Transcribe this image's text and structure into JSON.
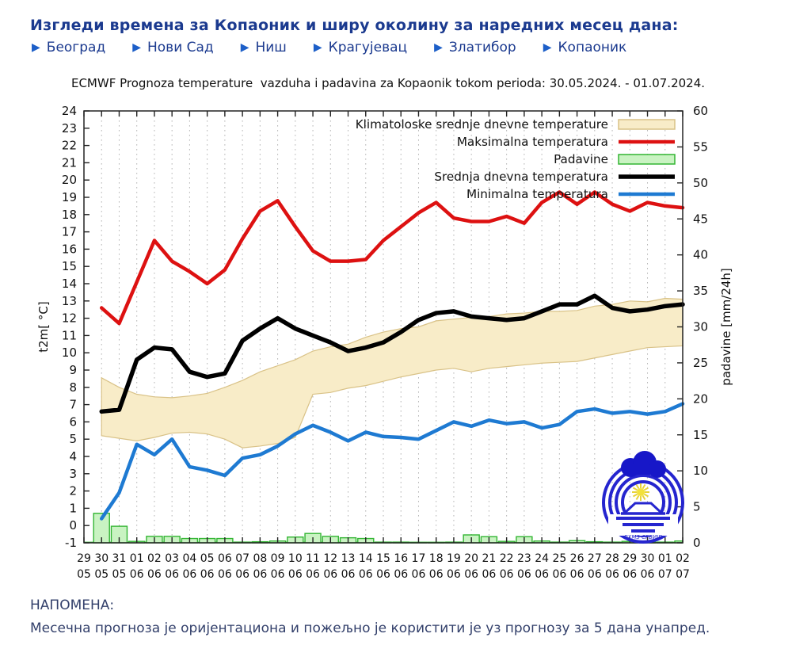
{
  "page": {
    "title": "Изгледи времена за Копаоник и ширу околину за наредних месец дана:",
    "note_heading": "НАПОМЕНА:",
    "note_text": "Месечна прогноза је оријентациона и пожељно је користити је уз прогнозу за 5 дана унапред."
  },
  "nav": {
    "arrow_icon": "▶",
    "links": [
      "Београд",
      "Нови Сад",
      "Ниш",
      "Крагујевац",
      "Златибор",
      "Копаоник"
    ]
  },
  "chart": {
    "title": "ECMWF Prognoza temperature  vazduha i padavina za Kopaonik tokom perioda: 30.05.2024. - 01.07.2024."
  },
  "colors": {
    "heading": "#1b3a8f",
    "arrow": "#1d5fc8",
    "note": "#33406b",
    "max_temp": "#dd1111",
    "mean_temp": "#000000",
    "min_temp": "#1e7ad2",
    "precip_fill": "#c9f3c2",
    "precip_border": "#33b533",
    "band_fill": "#f8ecc8",
    "band_border": "#d9c287",
    "grid": "#b5b5b5",
    "logo_blue": "#2525cf",
    "logo_sun": "#f2e13c"
  },
  "chart_data": {
    "type": "line",
    "title": "ECMWF Prognoza temperature  vazduha i padavina za Kopaonik tokom perioda: 30.05.2024. - 01.07.2024.",
    "ylabel_left": "t2m[ °C]",
    "ylabel_right": "padavine [mm/24h]",
    "ylim_left": [
      -1,
      24
    ],
    "ytick_step_left": 1,
    "ylim_right": [
      0,
      60
    ],
    "ytick_step_right": 5,
    "grid": "vertical-dotted",
    "legend_position": "top-right-inside",
    "logo_text": "РХМЗ СРБИЈЕ",
    "x_dates": [
      [
        "29",
        "05"
      ],
      [
        "30",
        "05"
      ],
      [
        "31",
        "05"
      ],
      [
        "01",
        "06"
      ],
      [
        "02",
        "06"
      ],
      [
        "03",
        "06"
      ],
      [
        "04",
        "06"
      ],
      [
        "05",
        "06"
      ],
      [
        "06",
        "06"
      ],
      [
        "07",
        "06"
      ],
      [
        "08",
        "06"
      ],
      [
        "09",
        "06"
      ],
      [
        "10",
        "06"
      ],
      [
        "11",
        "06"
      ],
      [
        "12",
        "06"
      ],
      [
        "13",
        "06"
      ],
      [
        "14",
        "06"
      ],
      [
        "15",
        "06"
      ],
      [
        "16",
        "06"
      ],
      [
        "17",
        "06"
      ],
      [
        "18",
        "06"
      ],
      [
        "19",
        "06"
      ],
      [
        "20",
        "06"
      ],
      [
        "21",
        "06"
      ],
      [
        "22",
        "06"
      ],
      [
        "23",
        "06"
      ],
      [
        "24",
        "06"
      ],
      [
        "25",
        "06"
      ],
      [
        "26",
        "06"
      ],
      [
        "27",
        "06"
      ],
      [
        "28",
        "06"
      ],
      [
        "29",
        "06"
      ],
      [
        "30",
        "06"
      ],
      [
        "01",
        "07"
      ],
      [
        "02",
        "07"
      ]
    ],
    "series": [
      {
        "name": "Klimatoloske srednje dnevne temperature",
        "id": "climatology-band",
        "type": "band",
        "axis": "left",
        "color": "#f8ecc8",
        "border": "#d9c287",
        "upper": [
          null,
          8.55,
          8.0,
          7.6,
          7.45,
          7.4,
          7.5,
          7.65,
          8.0,
          8.4,
          8.9,
          9.25,
          9.6,
          10.1,
          10.35,
          10.5,
          10.9,
          11.2,
          11.4,
          11.5,
          11.85,
          11.95,
          12.05,
          12.1,
          12.25,
          12.3,
          12.4,
          12.4,
          12.45,
          12.7,
          12.8,
          13.0,
          12.95,
          13.15,
          13.1
        ],
        "lower": [
          null,
          5.2,
          5.05,
          4.9,
          5.1,
          5.35,
          5.4,
          5.3,
          5.0,
          4.5,
          4.6,
          4.75,
          5.1,
          7.6,
          7.7,
          7.95,
          8.1,
          8.35,
          8.6,
          8.8,
          9.0,
          9.1,
          8.9,
          9.1,
          9.2,
          9.3,
          9.4,
          9.45,
          9.5,
          9.7,
          9.9,
          10.1,
          10.3,
          10.35,
          10.4
        ]
      },
      {
        "name": "Maksimalna temperatura",
        "id": "max-temp-line",
        "type": "line",
        "axis": "left",
        "color": "#dd1111",
        "width": 4.5,
        "values": [
          null,
          12.6,
          11.7,
          14.1,
          16.5,
          15.3,
          14.7,
          14.0,
          14.8,
          16.6,
          18.2,
          18.8,
          17.3,
          15.9,
          15.3,
          15.3,
          15.4,
          16.5,
          17.3,
          18.1,
          18.7,
          17.8,
          17.6,
          17.6,
          17.9,
          17.5,
          18.7,
          19.3,
          18.6,
          19.3,
          18.6,
          18.2,
          18.7,
          18.5,
          18.4
        ]
      },
      {
        "name": "Padavine",
        "id": "precip-bars",
        "type": "bar",
        "axis": "right",
        "color": "#c9f3c2",
        "border": "#33b533",
        "values": [
          0,
          4.1,
          2.3,
          0.2,
          0.9,
          0.9,
          0.6,
          0.6,
          0.6,
          0.1,
          0.15,
          0.25,
          0.8,
          1.3,
          0.9,
          0.7,
          0.6,
          0.1,
          0.1,
          0.05,
          0.05,
          0.1,
          1.1,
          0.85,
          0.2,
          0.85,
          0.25,
          0.1,
          0.3,
          0.15,
          0.1,
          0.2,
          0.1,
          0.1,
          0.25
        ]
      },
      {
        "name": "Srednja dnevna temperatura",
        "id": "mean-temp-line",
        "type": "line",
        "axis": "left",
        "color": "#000000",
        "width": 5.5,
        "values": [
          null,
          6.6,
          6.7,
          9.6,
          10.3,
          10.2,
          8.9,
          8.6,
          8.8,
          10.7,
          11.4,
          12.0,
          11.4,
          11.0,
          10.6,
          10.1,
          10.3,
          10.6,
          11.2,
          11.9,
          12.3,
          12.4,
          12.1,
          12.0,
          11.9,
          12.0,
          12.4,
          12.8,
          12.8,
          13.3,
          12.6,
          12.4,
          12.5,
          12.7,
          12.8
        ]
      },
      {
        "name": "Minimalna temperatura",
        "id": "min-temp-line",
        "type": "line",
        "axis": "left",
        "color": "#1e7ad2",
        "width": 4.5,
        "values": [
          null,
          0.4,
          1.9,
          4.7,
          4.1,
          5.0,
          3.4,
          3.2,
          2.9,
          3.9,
          4.1,
          4.6,
          5.3,
          5.8,
          5.4,
          4.9,
          5.4,
          5.15,
          5.1,
          5.0,
          5.5,
          6.0,
          5.75,
          6.1,
          5.9,
          6.0,
          5.65,
          5.85,
          6.6,
          6.75,
          6.5,
          6.6,
          6.45,
          6.6,
          7.05
        ]
      }
    ]
  }
}
